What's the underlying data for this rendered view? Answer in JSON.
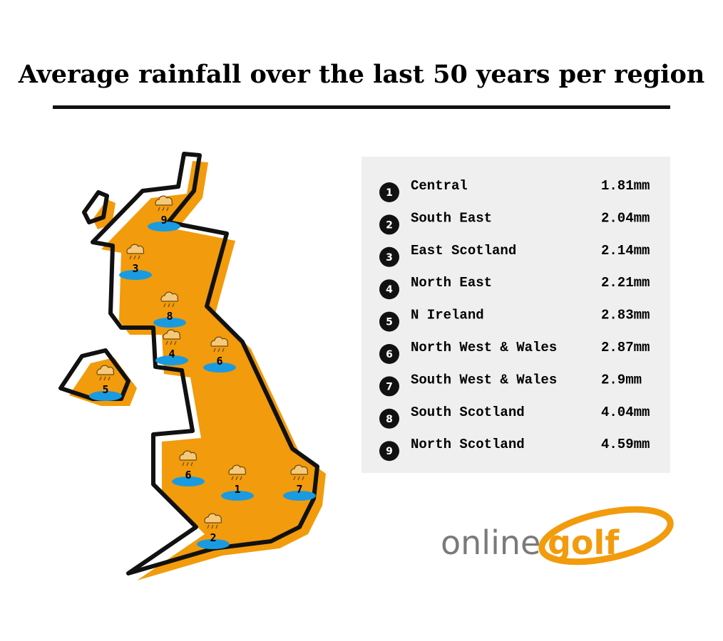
{
  "title": "Average rainfall over the last 50 years per region",
  "rankings": [
    {
      "rank": "1",
      "name": "Central",
      "value": "1.81mm"
    },
    {
      "rank": "2",
      "name": "South East",
      "value": "2.04mm"
    },
    {
      "rank": "3",
      "name": "East Scotland",
      "value": "2.14mm"
    },
    {
      "rank": "4",
      "name": "North East",
      "value": "2.21mm"
    },
    {
      "rank": "5",
      "name": "N Ireland",
      "value": "2.83mm"
    },
    {
      "rank": "6",
      "name": "North West & Wales",
      "value": "2.87mm"
    },
    {
      "rank": "7",
      "name": "South West & Wales",
      "value": "2.9mm"
    },
    {
      "rank": "8",
      "name": "South Scotland",
      "value": "4.04mm"
    },
    {
      "rank": "9",
      "name": "North Scotland",
      "value": "4.59mm"
    }
  ],
  "map_markers": [
    "9",
    "3",
    "8",
    "4",
    "6",
    "5",
    "6",
    "1",
    "7",
    "2"
  ],
  "logo": {
    "part1": "online",
    "part2": "golf"
  }
}
